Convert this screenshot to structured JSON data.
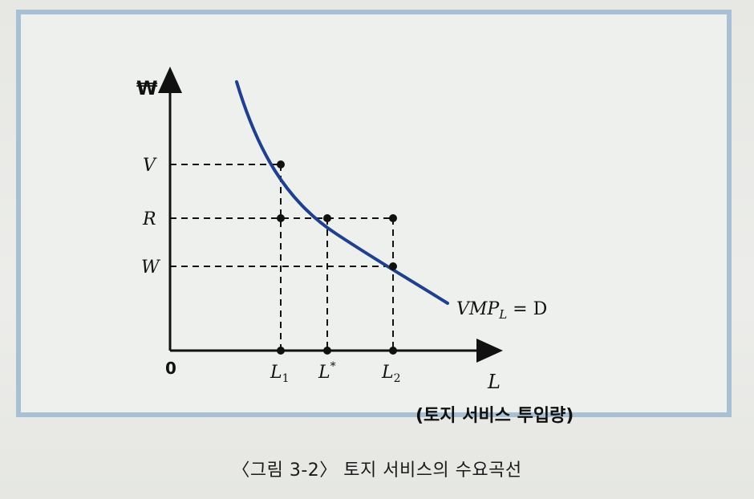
{
  "diagram": {
    "y_axis_symbol": "₩",
    "x_axis_symbol": "L",
    "x_axis_description": "(토지 서비스 투입량)",
    "origin": "0",
    "y_ticks": [
      "V",
      "R",
      "W"
    ],
    "x_ticks": [
      {
        "base": "L",
        "sub": "1",
        "sup": ""
      },
      {
        "base": "L",
        "sub": "",
        "sup": "*"
      },
      {
        "base": "L",
        "sub": "2",
        "sup": ""
      }
    ],
    "curve_label": {
      "base": "VMP",
      "sub": "L",
      "rest": " = D"
    },
    "colors": {
      "curve": "#1f3f8f",
      "frame": "#a9bfd4",
      "ink": "#111111"
    }
  },
  "caption": "〈그림 3-2〉 토지 서비스의 수요곡선"
}
